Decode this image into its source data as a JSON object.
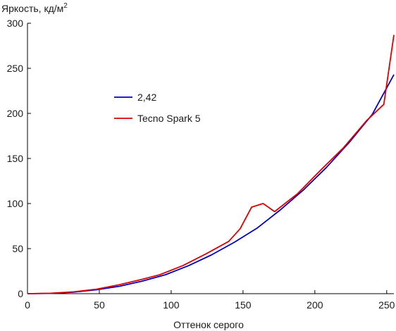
{
  "chart_data": {
    "type": "line",
    "title": "",
    "ylabel": "Яркость, кд/м",
    "ylabel_sup": "2",
    "xlabel": "Оттенок серого",
    "xlim": [
      0,
      255
    ],
    "ylim": [
      0,
      300
    ],
    "xticks": [
      0,
      50,
      100,
      150,
      200,
      250
    ],
    "yticks": [
      0,
      50,
      100,
      150,
      200,
      250,
      300
    ],
    "grid": false,
    "legend_position": "center-left",
    "series": [
      {
        "name": "2,42",
        "color": "#0000cc",
        "x": [
          0,
          16,
          32,
          48,
          64,
          80,
          96,
          112,
          128,
          144,
          160,
          176,
          192,
          208,
          224,
          240,
          255
        ],
        "y": [
          0,
          0.3,
          1.7,
          4.3,
          8.2,
          14,
          21,
          31,
          43,
          57,
          73,
          93,
          115,
          140,
          168,
          199,
          243
        ]
      },
      {
        "name": "Tecno Spark 5",
        "color": "#dd0000",
        "x": [
          0,
          16,
          32,
          48,
          64,
          80,
          92,
          108,
          124,
          140,
          148,
          156,
          164,
          172,
          188,
          204,
          220,
          236,
          248,
          255
        ],
        "y": [
          0,
          0.5,
          2,
          5,
          10,
          16,
          21,
          31,
          44,
          58,
          72,
          96,
          100,
          91,
          111,
          137,
          162,
          192,
          210,
          287
        ]
      }
    ]
  }
}
